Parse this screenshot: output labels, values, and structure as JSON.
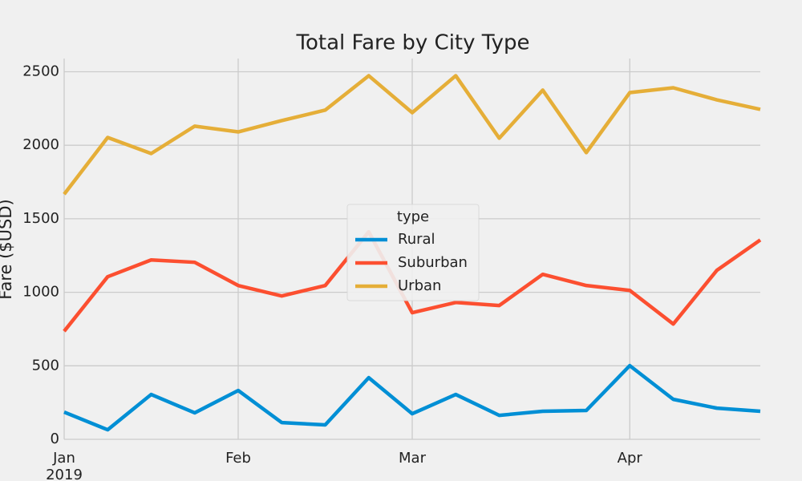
{
  "chart_data": {
    "type": "line",
    "title": "Total Fare by City Type",
    "ylabel": "Fare ($USD)",
    "categories": [
      "Jan",
      null,
      null,
      null,
      "Feb",
      null,
      null,
      null,
      "Mar",
      null,
      null,
      null,
      null,
      "Apr",
      null,
      null,
      null
    ],
    "year_label": "2019",
    "series": [
      {
        "name": "Rural",
        "color": "#008fd5",
        "values": [
          185,
          65,
          305,
          180,
          332,
          114,
          98,
          419,
          174,
          305,
          163,
          191,
          196,
          501,
          272,
          212,
          191
        ]
      },
      {
        "name": "Suburban",
        "color": "#fc4f30",
        "values": [
          735,
          1106,
          1220,
          1204,
          1046,
          975,
          1046,
          1411,
          861,
          931,
          910,
          1122,
          1046,
          1013,
          784,
          1149,
          1356
        ]
      },
      {
        "name": "Urban",
        "color": "#e5ae38",
        "values": [
          1667,
          2053,
          1944,
          2130,
          2091,
          2168,
          2239,
          2473,
          2222,
          2473,
          2048,
          2375,
          1950,
          2358,
          2391,
          2309,
          2244
        ]
      }
    ],
    "legend_title": "type",
    "ylim": [
      0,
      2590
    ],
    "yticks": [
      0,
      500,
      1000,
      1500,
      2000,
      2500
    ],
    "grid": true
  }
}
